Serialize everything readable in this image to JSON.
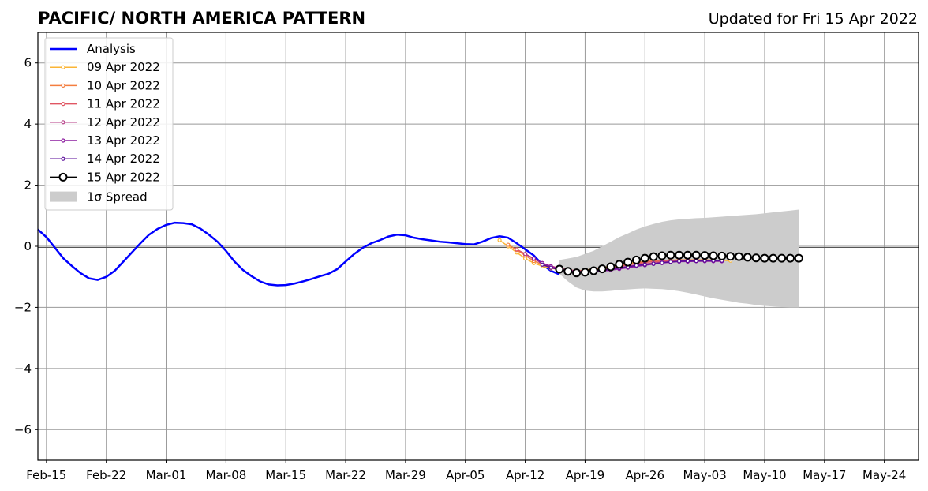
{
  "title": "PACIFIC/ NORTH AMERICA PATTERN",
  "updated": "Updated for Fri 15 Apr 2022",
  "chart_data": {
    "type": "line",
    "grid": true,
    "legend_position": "top-left",
    "zero_line": 0,
    "x_axis": {
      "range": [
        "2022-02-14",
        "2022-05-28"
      ],
      "tick_dates": [
        "2022-02-15",
        "2022-02-22",
        "2022-03-01",
        "2022-03-08",
        "2022-03-15",
        "2022-03-22",
        "2022-03-29",
        "2022-04-05",
        "2022-04-12",
        "2022-04-19",
        "2022-04-26",
        "2022-05-03",
        "2022-05-10",
        "2022-05-17",
        "2022-05-24"
      ],
      "tick_labels": [
        "Feb-15",
        "Feb-22",
        "Mar-01",
        "Mar-08",
        "Mar-15",
        "Mar-22",
        "Mar-29",
        "Apr-05",
        "Apr-12",
        "Apr-19",
        "Apr-26",
        "May-03",
        "May-10",
        "May-17",
        "May-24"
      ]
    },
    "y_axis": {
      "range": [
        -7,
        7
      ],
      "ticks": [
        -6,
        -4,
        -2,
        0,
        2,
        4,
        6
      ],
      "tick_labels": [
        "−6",
        "−4",
        "−2",
        "0",
        "2",
        "4",
        "6"
      ]
    },
    "spread": {
      "name": "1σ Spread",
      "color": "#cccccc",
      "start": "2022-04-16",
      "upper": [
        -0.45,
        -0.4,
        -0.35,
        -0.25,
        -0.15,
        0.0,
        0.15,
        0.3,
        0.42,
        0.55,
        0.65,
        0.73,
        0.8,
        0.85,
        0.88,
        0.9,
        0.92,
        0.93,
        0.95,
        0.97,
        0.99,
        1.01,
        1.03,
        1.05,
        1.08,
        1.11,
        1.14,
        1.17,
        1.2
      ],
      "lower": [
        -0.9,
        -1.15,
        -1.35,
        -1.45,
        -1.48,
        -1.48,
        -1.46,
        -1.43,
        -1.41,
        -1.39,
        -1.38,
        -1.39,
        -1.4,
        -1.43,
        -1.47,
        -1.52,
        -1.58,
        -1.64,
        -1.7,
        -1.75,
        -1.8,
        -1.85,
        -1.88,
        -1.92,
        -1.95,
        -1.97,
        -1.99,
        -2.0,
        -2.0
      ]
    },
    "series": [
      {
        "name": "Analysis",
        "color": "#0000ff",
        "start": "2022-02-14",
        "values": [
          0.55,
          0.3,
          -0.05,
          -0.4,
          -0.65,
          -0.88,
          -1.05,
          -1.1,
          -1.0,
          -0.8,
          -0.5,
          -0.2,
          0.1,
          0.38,
          0.57,
          0.7,
          0.77,
          0.76,
          0.72,
          0.58,
          0.38,
          0.15,
          -0.15,
          -0.5,
          -0.78,
          -0.98,
          -1.15,
          -1.25,
          -1.28,
          -1.27,
          -1.22,
          -1.15,
          -1.07,
          -0.98,
          -0.9,
          -0.75,
          -0.5,
          -0.25,
          -0.05,
          0.1,
          0.2,
          0.32,
          0.38,
          0.36,
          0.28,
          0.23,
          0.19,
          0.15,
          0.13,
          0.1,
          0.07,
          0.06,
          0.15,
          0.27,
          0.33,
          0.28,
          0.1,
          -0.1,
          -0.3,
          -0.6,
          -0.8,
          -0.92
        ]
      },
      {
        "name": "09 Apr 2022",
        "color": "#fbb536",
        "start": "2022-04-09",
        "values": [
          0.2,
          0.0,
          -0.2,
          -0.4,
          -0.55,
          -0.65,
          -0.72,
          -0.76,
          -0.8,
          -0.8,
          -0.78,
          -0.74,
          -0.7,
          -0.65,
          -0.6,
          -0.56,
          -0.52,
          -0.5,
          -0.48,
          -0.47,
          -0.46,
          -0.45,
          -0.45,
          -0.45,
          -0.45,
          -0.46,
          -0.46,
          -0.47
        ]
      },
      {
        "name": "10 Apr 2022",
        "color": "#f47e3f",
        "start": "2022-04-10",
        "values": [
          0.05,
          -0.12,
          -0.3,
          -0.48,
          -0.6,
          -0.68,
          -0.74,
          -0.78,
          -0.8,
          -0.79,
          -0.76,
          -0.72,
          -0.68,
          -0.63,
          -0.58,
          -0.54,
          -0.5,
          -0.48,
          -0.47,
          -0.46,
          -0.45,
          -0.45,
          -0.45,
          -0.45,
          -0.46,
          -0.46
        ]
      },
      {
        "name": "11 Apr 2022",
        "color": "#e05663",
        "start": "2022-04-11",
        "values": [
          -0.1,
          -0.25,
          -0.42,
          -0.55,
          -0.65,
          -0.72,
          -0.77,
          -0.8,
          -0.8,
          -0.78,
          -0.74,
          -0.7,
          -0.66,
          -0.61,
          -0.57,
          -0.53,
          -0.5,
          -0.49,
          -0.48,
          -0.47,
          -0.46,
          -0.46,
          -0.46,
          -0.46,
          -0.46
        ]
      },
      {
        "name": "12 Apr 2022",
        "color": "#b53b86",
        "start": "2022-04-12",
        "values": [
          -0.25,
          -0.4,
          -0.55,
          -0.65,
          -0.73,
          -0.78,
          -0.81,
          -0.82,
          -0.8,
          -0.77,
          -0.74,
          -0.7,
          -0.66,
          -0.62,
          -0.58,
          -0.55,
          -0.52,
          -0.5,
          -0.49,
          -0.48,
          -0.48,
          -0.47,
          -0.47,
          -0.47
        ]
      },
      {
        "name": "13 Apr 2022",
        "color": "#8c1c9f",
        "start": "2022-04-13",
        "values": [
          -0.4,
          -0.55,
          -0.66,
          -0.74,
          -0.8,
          -0.83,
          -0.84,
          -0.83,
          -0.81,
          -0.78,
          -0.74,
          -0.7,
          -0.66,
          -0.62,
          -0.58,
          -0.55,
          -0.52,
          -0.5,
          -0.5,
          -0.49,
          -0.49,
          -0.49,
          -0.49
        ]
      },
      {
        "name": "14 Apr 2022",
        "color": "#5a0b9a",
        "start": "2022-04-14",
        "values": [
          -0.6,
          -0.7,
          -0.77,
          -0.82,
          -0.84,
          -0.84,
          -0.82,
          -0.79,
          -0.75,
          -0.71,
          -0.67,
          -0.63,
          -0.6,
          -0.57,
          -0.54,
          -0.51,
          -0.49,
          -0.48,
          -0.48,
          -0.47,
          -0.47,
          -0.47
        ]
      },
      {
        "name": "15 Apr 2022",
        "color": "#000000",
        "start": "2022-04-16",
        "markers": "open-circle",
        "values": [
          -0.75,
          -0.82,
          -0.87,
          -0.85,
          -0.8,
          -0.74,
          -0.67,
          -0.59,
          -0.52,
          -0.45,
          -0.39,
          -0.34,
          -0.31,
          -0.29,
          -0.29,
          -0.29,
          -0.29,
          -0.3,
          -0.31,
          -0.32,
          -0.33,
          -0.34,
          -0.36,
          -0.38,
          -0.39,
          -0.39,
          -0.39,
          -0.39,
          -0.39
        ]
      }
    ]
  }
}
